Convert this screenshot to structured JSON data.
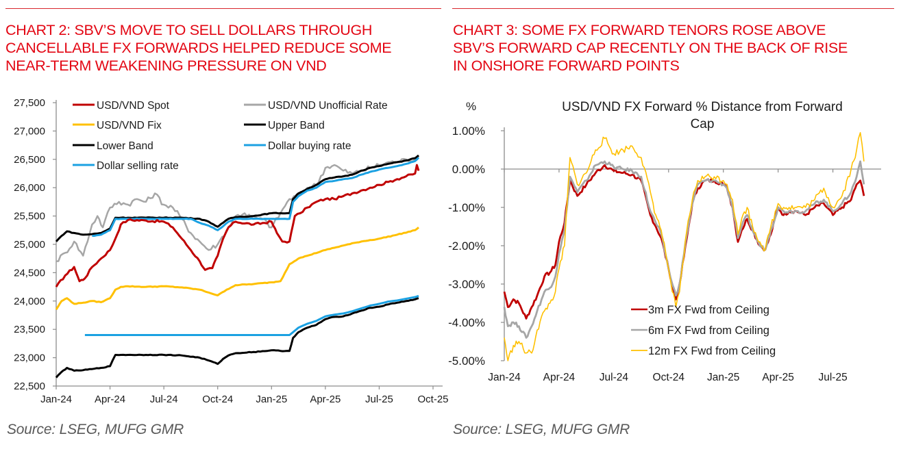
{
  "left_panel": {
    "title": "CHART 2: SBV’S MOVE TO SELL DOLLARS THROUGH CANCELLABLE FX FORWARDS HELPED REDUCE SOME NEAR-TERM WEAKENING PRESSURE ON VND",
    "title_lines": [
      "CHART 2: SBV’S MOVE TO SELL DOLLARS THROUGH",
      "CANCELLABLE FX FORWARDS HELPED REDUCE SOME",
      "NEAR-TERM WEAKENING PRESSURE ON VND"
    ],
    "source": "Source: LSEG, MUFG GMR"
  },
  "right_panel": {
    "title": "CHART 3: SOME FX FORWARD TENORS ROSE ABOVE SBV’S FORWARD CAP RECENTLY ON THE BACK OF RISE IN ONSHORE FORWARD POINTS",
    "title_lines": [
      "CHART 3: SOME FX FORWARD TENORS ROSE ABOVE",
      "SBV’S FORWARD CAP RECENTLY ON THE BACK OF RISE",
      "IN ONSHORE FORWARD POINTS"
    ],
    "source": "Source: LSEG, MUFG GMR"
  },
  "colors": {
    "title_red": "#e30613",
    "rule_red": "#d9262c",
    "source_gray": "#595959"
  },
  "chart_data": [
    {
      "type": "line",
      "title": "",
      "xlabel": "",
      "ylabel": "",
      "x_unit": "months since Jan-2024",
      "xlim": [
        0,
        21
      ],
      "ylim": [
        22500,
        27500
      ],
      "yticks": [
        22500,
        23000,
        23500,
        24000,
        24500,
        25000,
        25500,
        26000,
        26500,
        27000,
        27500
      ],
      "ytick_labels": [
        "22,500",
        "23,000",
        "23,500",
        "24,000",
        "24,500",
        "25,000",
        "25,500",
        "26,000",
        "26,500",
        "27,000",
        "27,500"
      ],
      "xticks": [
        0,
        3,
        6,
        9,
        12,
        15,
        18,
        21
      ],
      "xtick_labels": [
        "Jan-24",
        "Apr-24",
        "Jul-24",
        "Oct-24",
        "Jan-25",
        "Apr-25",
        "Jul-25",
        "Oct-25"
      ],
      "grid": false,
      "legend": "top-left, two columns",
      "series": [
        {
          "name": "USD/VND Spot",
          "color": "#c00000",
          "x": [
            0,
            0.5,
            1,
            1.3,
            1.6,
            2,
            2.5,
            3,
            3.3,
            3.6,
            4,
            5,
            6,
            6.5,
            7,
            7.5,
            8,
            8.3,
            8.7,
            9,
            9.3,
            9.6,
            10,
            11,
            12,
            12.3,
            12.6,
            13,
            13.2,
            13.3,
            13.6,
            14,
            14.5,
            15,
            15.5,
            16,
            16.5,
            17,
            17.5,
            18,
            18.5,
            19,
            19.5,
            20,
            20.1,
            20.2
          ],
          "values": [
            24250,
            24450,
            24600,
            24350,
            24400,
            24600,
            24750,
            24900,
            25100,
            25350,
            25430,
            25420,
            25400,
            25300,
            25100,
            24900,
            24700,
            24550,
            24580,
            24800,
            25100,
            25300,
            25400,
            25350,
            25400,
            25200,
            25050,
            25050,
            25350,
            25500,
            25550,
            25650,
            25750,
            25800,
            25800,
            25850,
            25900,
            25950,
            26000,
            26050,
            26100,
            26150,
            26200,
            26250,
            26400,
            26300
          ]
        },
        {
          "name": "USD/VND Unofficial Rate",
          "color": "#a6a6a6",
          "x": [
            0,
            0.5,
            1,
            1.5,
            2,
            2.3,
            2.6,
            3,
            3.5,
            4,
            4.5,
            5,
            5.5,
            6,
            6.5,
            7,
            7.5,
            8,
            8.5,
            9,
            9.5,
            10,
            10.5,
            11,
            11.5,
            12,
            12.5,
            13,
            13.5,
            14,
            14.5,
            15,
            15.5,
            16,
            16.5,
            17,
            17.5,
            18,
            18.5,
            19,
            19.5,
            20,
            20.2
          ],
          "values": [
            24700,
            24850,
            25050,
            24800,
            25350,
            25500,
            25300,
            25650,
            25750,
            25700,
            25800,
            25750,
            25900,
            25700,
            25650,
            25450,
            25200,
            25050,
            24900,
            25000,
            25250,
            25500,
            25550,
            25450,
            25450,
            25300,
            25550,
            25800,
            25850,
            26000,
            26050,
            26350,
            26400,
            26300,
            26250,
            26300,
            26350,
            26400,
            26450,
            26450,
            26500,
            26500,
            26550
          ]
        },
        {
          "name": "USD/VND Fix",
          "color": "#ffc000",
          "x": [
            0,
            0.3,
            0.6,
            1,
            1.5,
            2,
            2.5,
            3,
            3.3,
            3.6,
            4,
            5,
            6,
            7,
            8,
            8.5,
            9,
            9.5,
            10,
            11,
            12,
            12.5,
            13,
            13.5,
            14,
            15,
            16,
            17,
            18,
            19,
            20,
            20.2
          ],
          "values": [
            23850,
            24000,
            24050,
            23950,
            23970,
            24000,
            23980,
            24050,
            24200,
            24250,
            24260,
            24250,
            24260,
            24240,
            24200,
            24150,
            24100,
            24200,
            24280,
            24300,
            24330,
            24350,
            24650,
            24750,
            24800,
            24900,
            24980,
            25050,
            25100,
            25170,
            25250,
            25300
          ]
        },
        {
          "name": "Upper Band",
          "color": "#000000",
          "x": [
            0,
            0.3,
            0.6,
            1,
            1.5,
            2,
            2.5,
            3,
            3.3,
            3.6,
            4,
            5,
            6,
            7,
            8,
            8.5,
            9,
            9.3,
            9.6,
            10,
            11,
            12,
            12.5,
            13,
            13.2,
            13.5,
            14,
            14.5,
            15,
            15.5,
            16,
            16.5,
            17,
            17.5,
            18,
            18.5,
            19,
            19.5,
            20,
            20.2
          ],
          "values": [
            25050,
            25150,
            25230,
            25200,
            25170,
            25180,
            25200,
            25280,
            25470,
            25470,
            25470,
            25470,
            25470,
            25470,
            25450,
            25400,
            25310,
            25380,
            25450,
            25480,
            25500,
            25550,
            25550,
            25550,
            25800,
            25900,
            25980,
            26050,
            26150,
            26180,
            26200,
            26230,
            26300,
            26350,
            26380,
            26420,
            26450,
            26480,
            26520,
            26570
          ]
        },
        {
          "name": "Lower Band",
          "color": "#000000",
          "x": [
            0,
            0.3,
            0.6,
            1,
            1.5,
            2,
            2.5,
            3,
            3.3,
            3.6,
            4,
            5,
            6,
            7,
            8,
            8.5,
            9,
            9.3,
            9.6,
            10,
            11,
            12,
            12.5,
            13,
            13.2,
            13.5,
            14,
            14.5,
            15,
            15.5,
            16,
            16.5,
            17,
            17.5,
            18,
            18.5,
            19,
            19.5,
            20,
            20.2
          ],
          "values": [
            22650,
            22750,
            22820,
            22770,
            22780,
            22800,
            22820,
            22850,
            23050,
            23050,
            23050,
            23050,
            23050,
            23040,
            23000,
            22950,
            22890,
            22980,
            23040,
            23080,
            23100,
            23130,
            23120,
            23120,
            23350,
            23450,
            23530,
            23580,
            23680,
            23720,
            23730,
            23780,
            23830,
            23880,
            23900,
            23940,
            23970,
            24000,
            24030,
            24050
          ]
        },
        {
          "name": "Dollar buying rate",
          "color": "#1ba1e2",
          "x": [
            2,
            2.5,
            3,
            3.3,
            3.6,
            4,
            5,
            6,
            7,
            7.5,
            8,
            8.5,
            9,
            9.3,
            9.6,
            10,
            11,
            12,
            12.5,
            13,
            13.2,
            13.5,
            14,
            14.5,
            15,
            15.5,
            16,
            16.5,
            17,
            17.5,
            18,
            18.5,
            19,
            19.5,
            20,
            20.2
          ],
          "values": [
            25150,
            25170,
            25250,
            25450,
            25450,
            25450,
            25450,
            25450,
            25450,
            25450,
            25380,
            25330,
            25250,
            25320,
            25400,
            25450,
            25450,
            25450,
            25450,
            25450,
            25750,
            25850,
            25950,
            26000,
            26100,
            26120,
            26150,
            26170,
            26230,
            26280,
            26320,
            26350,
            26380,
            26420,
            26470,
            26530
          ]
        },
        {
          "name": "Dollar selling rate",
          "color": "#1ba1e2",
          "x": [
            1.6,
            3,
            6,
            9,
            12,
            13,
            13.2,
            13.5,
            14,
            14.5,
            15,
            15.5,
            16,
            16.5,
            17,
            17.5,
            18,
            18.5,
            19,
            19.5,
            20,
            20.2
          ],
          "values": [
            23400,
            23400,
            23400,
            23400,
            23400,
            23400,
            23450,
            23530,
            23600,
            23650,
            23730,
            23760,
            23780,
            23820,
            23870,
            23920,
            23950,
            23990,
            24010,
            24040,
            24070,
            24090
          ]
        }
      ]
    },
    {
      "type": "line",
      "title": "USD/VND FX Forward % Distance from Forward Cap",
      "title_lines": [
        "USD/VND FX Forward % Distance from Forward",
        "Cap"
      ],
      "ylabel": "%",
      "xlabel": "",
      "x_unit": "months since Jan-2024",
      "xlim": [
        0,
        20
      ],
      "ylim": [
        -5.0,
        1.0
      ],
      "yticks": [
        1.0,
        0.0,
        -1.0,
        -2.0,
        -3.0,
        -4.0,
        -5.0
      ],
      "ytick_labels": [
        "1.00%",
        "0.00%",
        "-1.00%",
        "-2.00%",
        "-3.00%",
        "-4.00%",
        "-5.00%"
      ],
      "xticks": [
        0,
        3,
        6,
        9,
        12,
        15,
        18
      ],
      "xtick_labels": [
        "Jan-24",
        "Apr-24",
        "Jul-24",
        "Oct-24",
        "Jan-25",
        "Apr-25",
        "Jul-25"
      ],
      "grid": false,
      "legend": "bottom-center",
      "series": [
        {
          "name": "3m FX Fwd from Ceiling",
          "color": "#c00000",
          "x": [
            0,
            0.2,
            0.5,
            0.8,
            1.2,
            1.5,
            1.8,
            2.2,
            2.5,
            2.8,
            3,
            3.3,
            3.6,
            4,
            4.5,
            5,
            5.5,
            6,
            6.5,
            7,
            7.5,
            8,
            8.3,
            8.6,
            9,
            9.2,
            9.4,
            9.6,
            10,
            10.3,
            10.6,
            11,
            11.5,
            12,
            12.2,
            12.5,
            12.8,
            13,
            13.3,
            13.6,
            14,
            14.3,
            14.6,
            15,
            15.3,
            15.6,
            16,
            16.5,
            17,
            17.5,
            18,
            18.5,
            19,
            19.3,
            19.5,
            19.7
          ],
          "values": [
            -3.2,
            -3.6,
            -3.4,
            -3.5,
            -3.9,
            -3.6,
            -3.3,
            -2.8,
            -2.7,
            -2.5,
            -1.9,
            -1.4,
            -0.3,
            -0.7,
            -0.4,
            -0.1,
            0.1,
            -0.05,
            -0.1,
            -0.15,
            -0.3,
            -1.2,
            -1.5,
            -1.8,
            -2.6,
            -3.0,
            -3.4,
            -3.0,
            -1.8,
            -0.9,
            -0.5,
            -0.3,
            -0.3,
            -0.4,
            -0.5,
            -1.0,
            -1.9,
            -1.6,
            -1.3,
            -1.6,
            -2.0,
            -2.1,
            -1.7,
            -1.0,
            -1.2,
            -1.1,
            -1.1,
            -1.2,
            -1.0,
            -0.9,
            -1.2,
            -1.0,
            -0.8,
            -0.4,
            -0.3,
            -0.7
          ]
        },
        {
          "name": "6m FX Fwd from Ceiling",
          "color": "#a6a6a6",
          "x": [
            0,
            0.2,
            0.5,
            0.8,
            1.2,
            1.5,
            1.8,
            2.2,
            2.5,
            2.8,
            3,
            3.3,
            3.6,
            4,
            4.5,
            5,
            5.5,
            6,
            6.5,
            7,
            7.5,
            8,
            8.3,
            8.6,
            9,
            9.2,
            9.4,
            9.6,
            10,
            10.3,
            10.6,
            11,
            11.5,
            12,
            12.2,
            12.5,
            12.8,
            13,
            13.3,
            13.6,
            14,
            14.3,
            14.6,
            15,
            15.3,
            15.6,
            16,
            16.5,
            17,
            17.5,
            18,
            18.5,
            19,
            19.3,
            19.5,
            19.7
          ],
          "values": [
            -3.6,
            -4.1,
            -4.0,
            -4.1,
            -4.4,
            -4.1,
            -3.7,
            -3.2,
            -3.1,
            -2.8,
            -2.2,
            -1.6,
            -0.2,
            -0.6,
            -0.3,
            0.1,
            0.2,
            0.05,
            0.0,
            -0.05,
            -0.2,
            -1.1,
            -1.4,
            -1.7,
            -2.6,
            -3.0,
            -3.3,
            -3.0,
            -1.7,
            -0.9,
            -0.4,
            -0.3,
            -0.3,
            -0.4,
            -0.5,
            -1.0,
            -1.8,
            -1.5,
            -1.2,
            -1.6,
            -2.0,
            -2.1,
            -1.6,
            -1.0,
            -1.1,
            -1.1,
            -1.1,
            -1.1,
            -0.9,
            -0.8,
            -1.1,
            -0.9,
            -0.6,
            -0.2,
            0.2,
            -0.4
          ]
        },
        {
          "name": "12m FX Fwd from Ceiling",
          "color": "#ffc000",
          "x": [
            0,
            0.2,
            0.5,
            0.8,
            1.2,
            1.5,
            1.8,
            2.2,
            2.5,
            2.8,
            3,
            3.3,
            3.6,
            4,
            4.5,
            5,
            5.5,
            6,
            6.5,
            7,
            7.5,
            8,
            8.3,
            8.6,
            9,
            9.2,
            9.4,
            9.6,
            10,
            10.3,
            10.6,
            11,
            11.5,
            12,
            12.2,
            12.5,
            12.8,
            13,
            13.3,
            13.6,
            14,
            14.3,
            14.6,
            15,
            15.3,
            15.6,
            16,
            16.5,
            17,
            17.5,
            18,
            18.5,
            19,
            19.3,
            19.5,
            19.7
          ],
          "values": [
            -4.4,
            -5.0,
            -4.6,
            -4.5,
            -4.8,
            -4.8,
            -4.2,
            -3.7,
            -3.5,
            -3.2,
            -2.6,
            -2.0,
            0.3,
            -0.4,
            -0.1,
            0.5,
            0.8,
            0.4,
            0.5,
            0.6,
            0.3,
            -0.6,
            -1.2,
            -1.6,
            -2.6,
            -3.2,
            -3.6,
            -3.2,
            -1.6,
            -0.8,
            -0.3,
            -0.2,
            -0.2,
            -0.3,
            -0.4,
            -0.8,
            -1.7,
            -1.3,
            -1.0,
            -1.5,
            -1.9,
            -2.1,
            -1.5,
            -0.9,
            -1.0,
            -1.0,
            -1.0,
            -1.0,
            -0.8,
            -0.5,
            -1.0,
            -0.7,
            0.0,
            0.5,
            0.95,
            0.2
          ]
        }
      ]
    }
  ]
}
